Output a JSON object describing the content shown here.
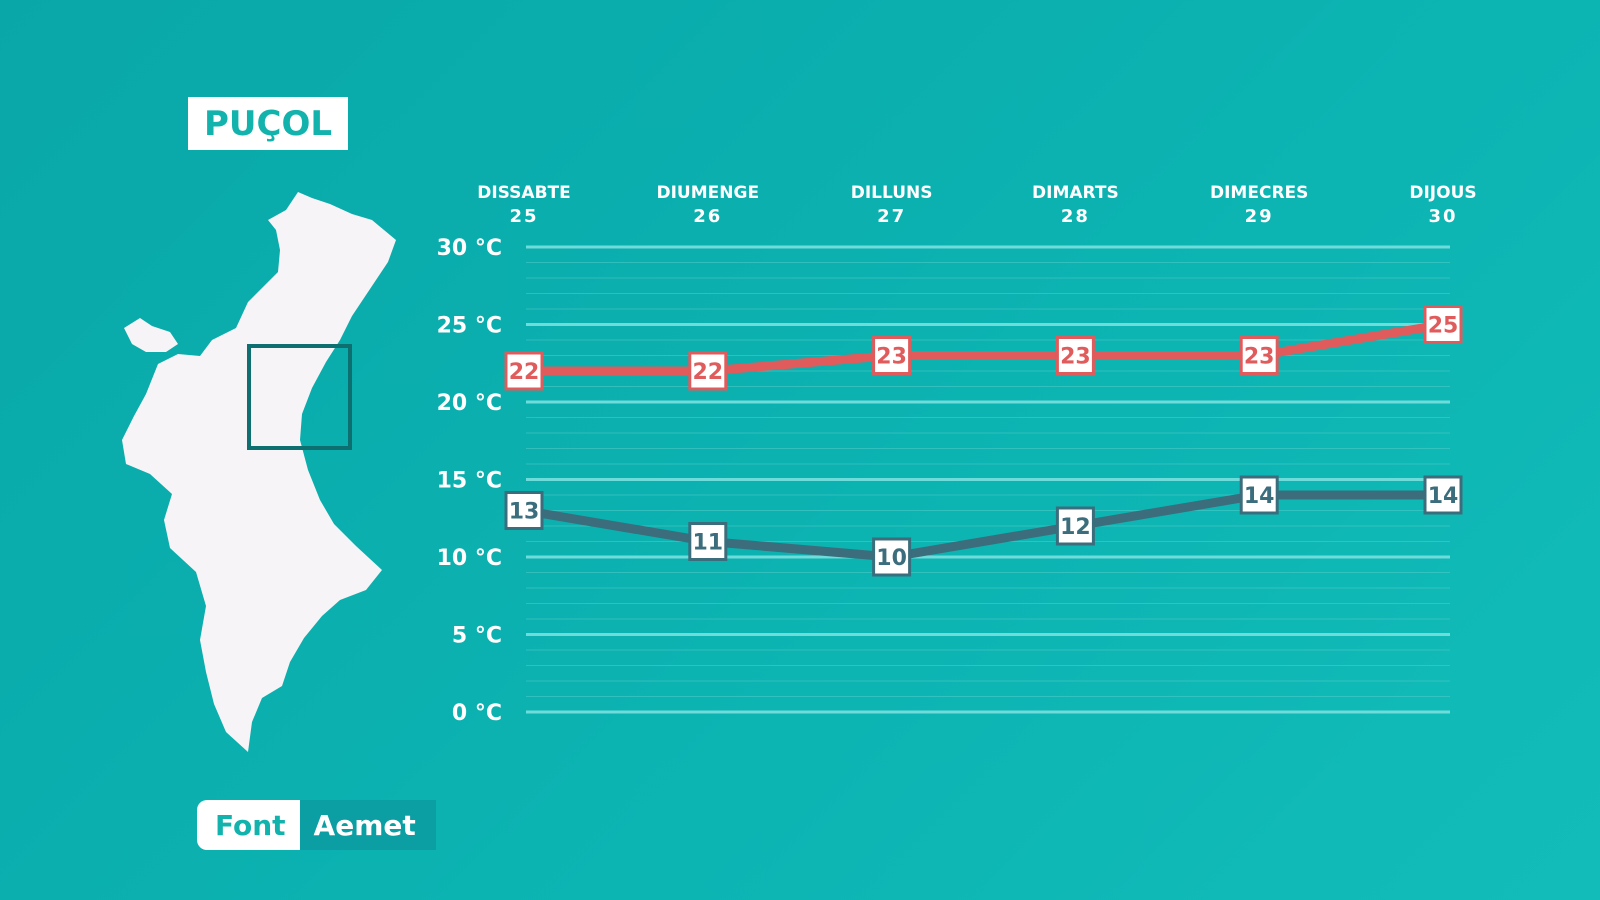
{
  "location": "PUÇOL",
  "source": {
    "label": "Font",
    "value": "Aemet"
  },
  "colors": {
    "max": "#e05b5b",
    "min": "#3b6d7c",
    "grid": "#6fdcdc",
    "background": "#0bb0af"
  },
  "chart_data": {
    "type": "line",
    "categories": [
      "DISSABTE 25",
      "DIUMENGE 26",
      "DILLUNS 27",
      "DIMARTS 28",
      "DIMECRES 29",
      "DIJOUS 30"
    ],
    "days": [
      {
        "name": "DISSABTE",
        "num": "25"
      },
      {
        "name": "DIUMENGE",
        "num": "26"
      },
      {
        "name": "DILLUNS",
        "num": "27"
      },
      {
        "name": "DIMARTS",
        "num": "28"
      },
      {
        "name": "DIMECRES",
        "num": "29"
      },
      {
        "name": "DIJOUS",
        "num": "30"
      }
    ],
    "series": [
      {
        "values": [
          22,
          22,
          23,
          23,
          23,
          25
        ],
        "color": "#e05b5b"
      },
      {
        "values": [
          13,
          11,
          10,
          12,
          14,
          14
        ],
        "color": "#3b6d7c"
      }
    ],
    "yticks": [
      0,
      5,
      10,
      15,
      20,
      25,
      30
    ],
    "ytick_labels": [
      "0 °C",
      "5 °C",
      "10 °C",
      "15 °C",
      "20 °C",
      "25 °C",
      "30 °C"
    ],
    "ylim": [
      0,
      30
    ],
    "grid": true
  }
}
